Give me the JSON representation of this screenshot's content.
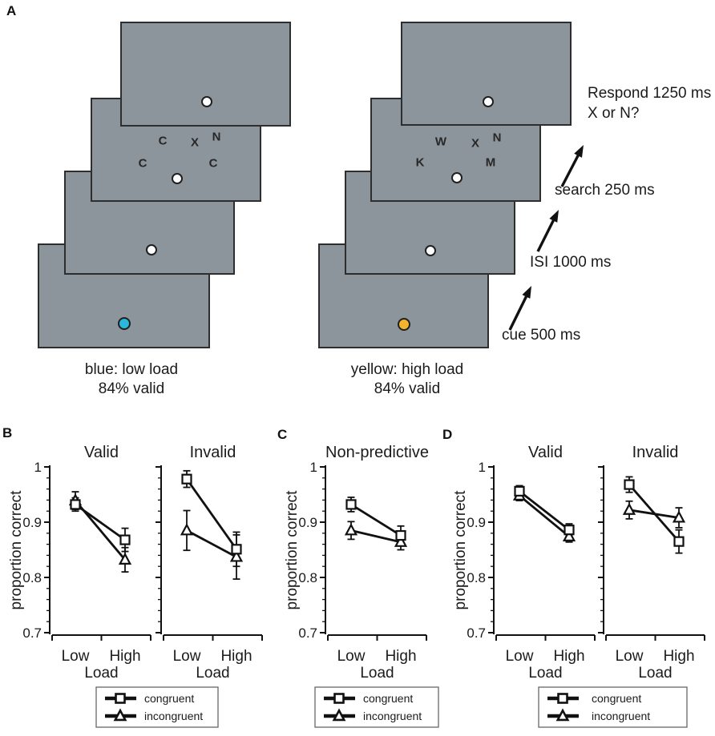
{
  "panels": {
    "a": {
      "label": "A",
      "screen_color": "#8d959c",
      "timeline": {
        "respond_label": "Respond 1250 ms",
        "respond_question": "X or N?",
        "search_label": "search 250 ms",
        "isi_label": "ISI 1000 ms",
        "cue_label": "cue 500 ms"
      },
      "low_load": {
        "caption_line1": "blue: low load",
        "caption_line2": "84% valid",
        "cue_dot_color": "#29b8dc",
        "search_letters": [
          "C",
          "X",
          "N",
          "C",
          "C"
        ]
      },
      "high_load": {
        "caption_line1": "yellow: high load",
        "caption_line2": "84% valid",
        "cue_dot_color": "#f4b32c",
        "search_letters": [
          "W",
          "X",
          "N",
          "K",
          "M"
        ]
      }
    },
    "b": {
      "label": "B"
    },
    "c": {
      "label": "C"
    },
    "d": {
      "label": "D"
    }
  },
  "legend": {
    "entries": [
      {
        "label": "congruent",
        "marker": "square"
      },
      {
        "label": "incongruent",
        "marker": "triangle"
      }
    ]
  },
  "chart_data": [
    {
      "panel": "B",
      "type": "line",
      "categories": [
        "Low",
        "High"
      ],
      "xlabel": "Load",
      "ylabel": "proportion correct",
      "ylim": [
        0.7,
        1.0
      ],
      "yticks": [
        1,
        0.9,
        0.8,
        0.7
      ],
      "minor_tick_step": 0.02,
      "subplots": [
        {
          "title": "Valid",
          "series": [
            {
              "name": "congruent",
              "marker": "square",
              "values": [
                0.932,
                0.868
              ],
              "errors": [
                0.012,
                0.021
              ]
            },
            {
              "name": "incongruent",
              "marker": "triangle",
              "values": [
                0.939,
                0.832
              ],
              "errors": [
                0.016,
                0.022
              ]
            }
          ]
        },
        {
          "title": "Invalid",
          "series": [
            {
              "name": "congruent",
              "marker": "square",
              "values": [
                0.978,
                0.851
              ],
              "errors": [
                0.015,
                0.031
              ]
            },
            {
              "name": "incongruent",
              "marker": "triangle",
              "values": [
                0.885,
                0.837
              ],
              "errors": [
                0.036,
                0.04
              ]
            }
          ]
        }
      ]
    },
    {
      "panel": "C",
      "type": "line",
      "categories": [
        "Low",
        "High"
      ],
      "xlabel": "Load",
      "ylabel": "proportion correct",
      "ylim": [
        0.7,
        1.0
      ],
      "yticks": [
        1,
        0.9,
        0.8,
        0.7
      ],
      "minor_tick_step": 0.02,
      "subplots": [
        {
          "title": "Non-predictive",
          "series": [
            {
              "name": "congruent",
              "marker": "square",
              "values": [
                0.932,
                0.876
              ],
              "errors": [
                0.013,
                0.017
              ]
            },
            {
              "name": "incongruent",
              "marker": "triangle",
              "values": [
                0.885,
                0.864
              ],
              "errors": [
                0.016,
                0.014
              ]
            }
          ]
        }
      ]
    },
    {
      "panel": "D",
      "type": "line",
      "categories": [
        "Low",
        "High"
      ],
      "xlabel": "Load",
      "ylabel": "proportion correct",
      "ylim": [
        0.7,
        1.0
      ],
      "yticks": [
        1,
        0.9,
        0.8,
        0.7
      ],
      "minor_tick_step": 0.02,
      "subplots": [
        {
          "title": "Valid",
          "series": [
            {
              "name": "congruent",
              "marker": "square",
              "values": [
                0.956,
                0.886
              ],
              "errors": [
                0.01,
                0.011
              ]
            },
            {
              "name": "incongruent",
              "marker": "triangle",
              "values": [
                0.948,
                0.874
              ],
              "errors": [
                0.009,
                0.01
              ]
            }
          ]
        },
        {
          "title": "Invalid",
          "series": [
            {
              "name": "congruent",
              "marker": "square",
              "values": [
                0.968,
                0.865
              ],
              "errors": [
                0.014,
                0.021
              ]
            },
            {
              "name": "incongruent",
              "marker": "triangle",
              "values": [
                0.922,
                0.908
              ],
              "errors": [
                0.016,
                0.018
              ]
            }
          ]
        }
      ]
    }
  ]
}
